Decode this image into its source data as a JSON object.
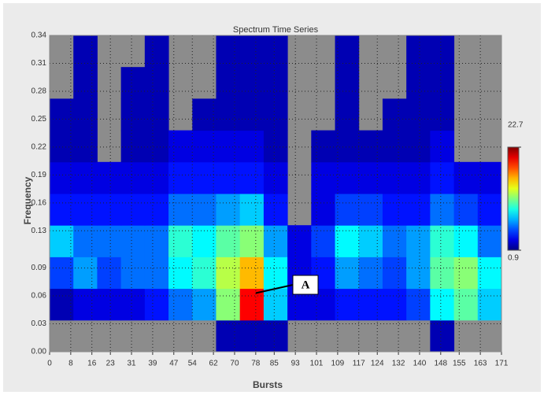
{
  "chart_data": {
    "type": "heatmap",
    "title": "Spectrum Time Series",
    "x_label": "Bursts",
    "y_label": "Frequency",
    "x": [
      4.5,
      13.5,
      22.5,
      31.5,
      40.5,
      49.5,
      58.5,
      67.5,
      76.5,
      85.5,
      94.5,
      103.5,
      112.5,
      121.5,
      130.5,
      139.5,
      148.5,
      157.5,
      166.5
    ],
    "y": [
      0.017,
      0.051,
      0.085,
      0.119,
      0.153,
      0.187,
      0.221,
      0.255,
      0.289,
      0.323
    ],
    "z": [
      [
        null,
        null,
        null,
        null,
        null,
        null,
        null,
        2,
        2,
        2,
        null,
        null,
        null,
        null,
        null,
        null,
        2,
        null,
        null
      ],
      [
        2,
        3,
        3,
        3,
        4,
        6,
        7,
        12,
        20,
        8,
        3,
        3,
        4,
        4,
        4,
        5,
        9,
        11,
        8
      ],
      [
        5,
        7,
        5,
        6,
        6,
        9,
        10,
        13,
        16,
        9,
        3,
        4,
        7,
        6,
        5,
        7,
        11,
        12,
        9
      ],
      [
        8,
        6,
        6,
        6,
        6,
        10,
        9,
        11,
        12,
        7,
        3,
        5,
        9,
        8,
        6,
        7,
        10,
        9,
        6
      ],
      [
        4,
        4,
        4,
        4,
        4,
        6,
        6,
        7,
        8,
        4,
        null,
        3,
        5,
        5,
        4,
        4,
        6,
        5,
        4
      ],
      [
        3,
        3,
        3,
        3,
        3,
        4,
        4,
        4,
        4,
        3,
        null,
        3,
        3,
        3,
        3,
        3,
        4,
        3,
        3
      ],
      [
        2,
        2,
        null,
        2,
        2,
        3,
        3,
        3,
        3,
        2,
        null,
        2,
        2,
        2,
        2,
        2,
        3,
        null,
        null
      ],
      [
        2,
        2,
        null,
        2,
        2,
        null,
        2,
        2,
        2,
        2,
        null,
        null,
        2,
        null,
        2,
        2,
        2,
        null,
        null
      ],
      [
        null,
        2,
        null,
        2,
        2,
        null,
        null,
        2,
        2,
        2,
        null,
        null,
        2,
        null,
        null,
        2,
        2,
        null,
        null
      ],
      [
        null,
        2,
        null,
        null,
        2,
        null,
        null,
        2,
        2,
        2,
        null,
        null,
        2,
        null,
        null,
        2,
        2,
        null,
        null
      ]
    ],
    "xlim": [
      0,
      171
    ],
    "xticks": [
      0,
      8,
      16,
      23,
      31,
      39,
      47,
      54,
      62,
      70,
      78,
      85,
      93,
      101,
      109,
      117,
      124,
      132,
      140,
      148,
      155,
      163,
      171
    ],
    "ylim": [
      0,
      0.34
    ],
    "yticks": [
      {
        "value": 0,
        "label": "0.00"
      },
      0.03,
      0.06,
      0.09,
      0.13,
      0.16,
      0.19,
      0.22,
      0.25,
      0.28,
      0.31,
      0.34
    ],
    "clim": [
      0.9,
      22.7
    ],
    "colorbar_ticks": [
      0.9,
      22.7
    ],
    "colormap": "jet",
    "missing_color": "#8c8c8c",
    "grid": true,
    "annotation": "A"
  }
}
